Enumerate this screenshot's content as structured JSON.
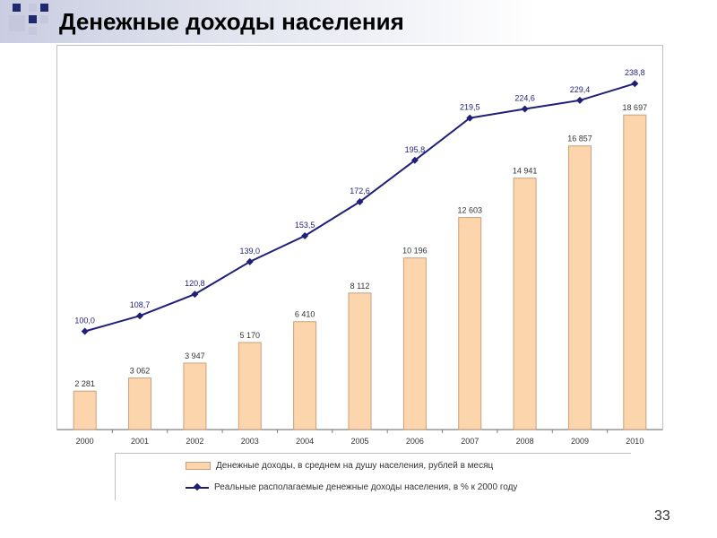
{
  "slide": {
    "title": "Денежные доходы населения",
    "page_number": "33"
  },
  "colors": {
    "bar_fill": "#fcd5ad",
    "bar_stroke": "#c8a080",
    "line": "#1f1f7a",
    "label": "#333333",
    "header_gradient": "#c9cde0"
  },
  "chart_data": {
    "type": "bar",
    "categories": [
      "2000",
      "2001",
      "2002",
      "2003",
      "2004",
      "2005",
      "2006",
      "2007",
      "2008",
      "2009",
      "2010"
    ],
    "series": [
      {
        "name": "Денежные доходы, в среднем на душу населения, рублей в месяц",
        "type": "bar",
        "values": [
          2281,
          3062,
          3947,
          5170,
          6410,
          8112,
          10196,
          12603,
          14941,
          16857,
          18697
        ],
        "labels": [
          "2 281",
          "3 062",
          "3 947",
          "5 170",
          "6 410",
          "8 112",
          "10 196",
          "12 603",
          "14 941",
          "16 857",
          "18 697"
        ]
      },
      {
        "name": "Реальные располагаемые денежные доходы населения, в % к 2000 году",
        "type": "line",
        "marker": "diamond",
        "values": [
          100.0,
          108.7,
          120.8,
          139.0,
          153.5,
          172.6,
          195.8,
          219.5,
          224.6,
          229.4,
          238.8
        ],
        "labels": [
          "100,0",
          "108,7",
          "120,8",
          "139,0",
          "153,5",
          "172,6",
          "195,8",
          "219,5",
          "224,6",
          "229,4",
          "238,8"
        ]
      }
    ],
    "title": "",
    "xlabel": "",
    "ylabel": "",
    "ylim_bar": [
      0,
      21000
    ],
    "ylim_line": [
      45,
      260
    ],
    "grid": false,
    "legend_position": "bottom"
  }
}
